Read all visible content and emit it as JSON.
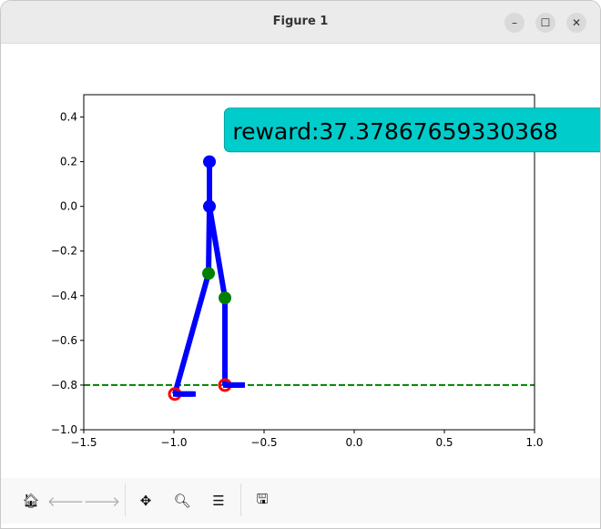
{
  "window": {
    "title": "Figure 1",
    "controls": [
      "minimize",
      "maximize",
      "close"
    ]
  },
  "toolbar": {
    "items": [
      {
        "name": "home-icon",
        "glyph": "🏠︎",
        "enabled": true
      },
      {
        "name": "back-icon",
        "glyph": "🡐",
        "enabled": false
      },
      {
        "name": "forward-icon",
        "glyph": "🡒",
        "enabled": false
      },
      {
        "name": "pan-icon",
        "glyph": "✥",
        "enabled": true
      },
      {
        "name": "zoom-icon",
        "glyph": "🔍︎",
        "enabled": true
      },
      {
        "name": "configure-subplots-icon",
        "glyph": "☰",
        "enabled": true
      },
      {
        "name": "save-icon",
        "glyph": "🖫",
        "enabled": true
      }
    ]
  },
  "chart_data": {
    "type": "line",
    "xlim": [
      -1.5,
      1.0
    ],
    "ylim": [
      -1.0,
      0.5
    ],
    "xticks": [
      "−1.5",
      "−1.0",
      "−0.5",
      "0.0",
      "0.5",
      "1.0"
    ],
    "xtick_values": [
      -1.5,
      -1.0,
      -0.5,
      0.0,
      0.5,
      1.0
    ],
    "yticks": [
      "−1.0",
      "−0.8",
      "−0.6",
      "−0.4",
      "−0.2",
      "0.0",
      "0.2",
      "0.4"
    ],
    "ytick_values": [
      -1.0,
      -0.8,
      -0.6,
      -0.4,
      -0.2,
      0.0,
      0.2,
      0.4
    ],
    "ground_line": {
      "y": -0.8,
      "color": "#008000",
      "style": "dashed"
    },
    "body_color": "#0000ff",
    "segments": [
      [
        [
          -0.803,
          0.2
        ],
        [
          -0.803,
          0.0
        ]
      ],
      [
        [
          -0.803,
          0.0
        ],
        [
          -0.808,
          -0.3
        ],
        [
          -0.995,
          -0.84
        ]
      ],
      [
        [
          -0.803,
          0.0
        ],
        [
          -0.717,
          -0.41
        ],
        [
          -0.717,
          -0.8
        ]
      ],
      [
        [
          -0.995,
          -0.84
        ],
        [
          -0.879,
          -0.84
        ]
      ],
      [
        [
          -0.717,
          -0.8
        ],
        [
          -0.606,
          -0.8
        ]
      ]
    ],
    "points": [
      {
        "x": -0.803,
        "y": 0.2,
        "color": "#0000ff",
        "label": "head"
      },
      {
        "x": -0.803,
        "y": 0.0,
        "color": "#0000ff",
        "label": "hip"
      },
      {
        "x": -0.808,
        "y": -0.3,
        "color": "#008000",
        "label": "knee"
      },
      {
        "x": -0.717,
        "y": -0.41,
        "color": "#008000",
        "label": "knee"
      },
      {
        "x": -0.995,
        "y": -0.84,
        "color": "#ff0000",
        "label": "foot"
      },
      {
        "x": -0.717,
        "y": -0.8,
        "color": "#ff0000",
        "label": "foot"
      }
    ],
    "annotation": {
      "text": "reward:37.37867659330368",
      "x": -0.69,
      "y": 0.35,
      "bg": "#00cccc"
    }
  }
}
